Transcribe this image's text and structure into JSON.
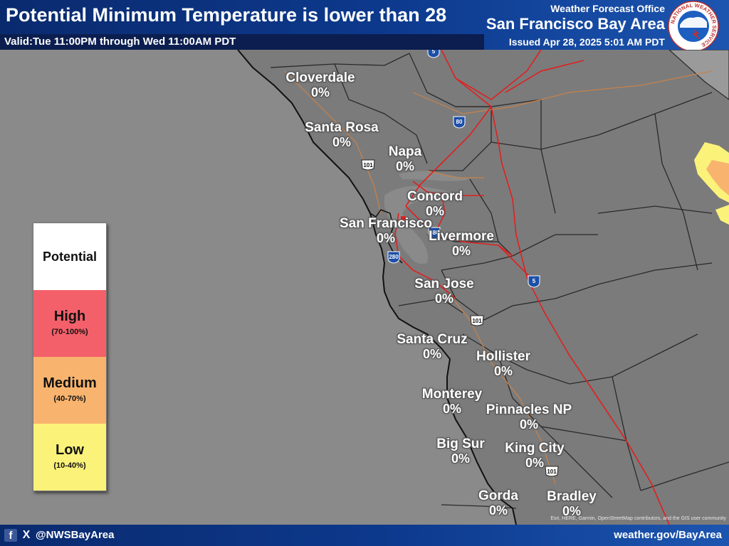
{
  "header": {
    "title": "Potential Minimum Temperature is lower than 28",
    "valid": "Valid:Tue 11:00PM through Wed 11:00AM PDT",
    "office_top": "Weather Forecast Office",
    "office_name": "San Francisco Bay Area",
    "issued": "Issued Apr 28, 2025 5:01 AM PDT",
    "logo_text": "NATIONAL WEATHER SERVICE"
  },
  "legend": {
    "heading": "Potential",
    "levels": [
      {
        "label": "High",
        "range": "(70-100%)",
        "color": "#f4606a"
      },
      {
        "label": "Medium",
        "range": "(40-70%)",
        "color": "#f8b46e"
      },
      {
        "label": "Low",
        "range": "(10-40%)",
        "color": "#fbf27a"
      }
    ]
  },
  "cities": [
    {
      "name": "Cloverdale",
      "value": "0%"
    },
    {
      "name": "Santa Rosa",
      "value": "0%"
    },
    {
      "name": "Napa",
      "value": "0%"
    },
    {
      "name": "Concord",
      "value": "0%"
    },
    {
      "name": "San Francisco",
      "value": "0%"
    },
    {
      "name": "Livermore",
      "value": "0%"
    },
    {
      "name": "San Jose",
      "value": "0%"
    },
    {
      "name": "Santa Cruz",
      "value": "0%"
    },
    {
      "name": "Hollister",
      "value": "0%"
    },
    {
      "name": "Monterey",
      "value": "0%"
    },
    {
      "name": "Pinnacles NP",
      "value": "0%"
    },
    {
      "name": "Big Sur",
      "value": "0%"
    },
    {
      "name": "King City",
      "value": "0%"
    },
    {
      "name": "Gorda",
      "value": "0%"
    },
    {
      "name": "Bradley",
      "value": "0%"
    }
  ],
  "highway_shields": [
    {
      "type": "interstate",
      "number": "5"
    },
    {
      "type": "interstate",
      "number": "80"
    },
    {
      "type": "us",
      "number": "101"
    },
    {
      "type": "interstate",
      "number": "580"
    },
    {
      "type": "interstate",
      "number": "280"
    },
    {
      "type": "interstate",
      "number": "5"
    },
    {
      "type": "us",
      "number": "101"
    },
    {
      "type": "us",
      "number": "101"
    }
  ],
  "colors": {
    "ocean": "#8a8a8a",
    "land": "#7b7b7b",
    "county_line": "#2a2a2a",
    "highway": "#e02020",
    "road": "#c8824a",
    "header_blue": "#0d3a8e"
  },
  "footer": {
    "facebook_icon": "f",
    "x_icon": "X",
    "handle": "@NWSBayArea",
    "website": "weather.gov/BayArea",
    "attribution": "Esri, HERE, Garmin, OpenStreetMap contributors, and the GIS user community"
  }
}
